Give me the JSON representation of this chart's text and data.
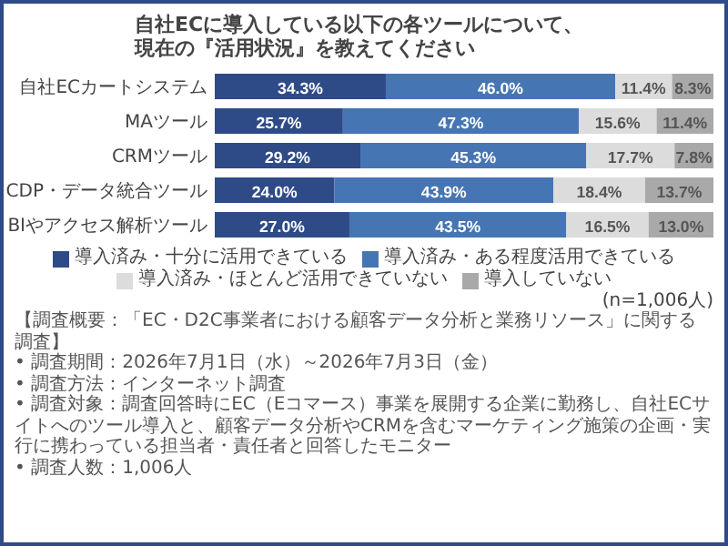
{
  "chart_data": {
    "type": "bar",
    "orientation": "horizontal",
    "stacked": true,
    "legend": "bottom",
    "title": "自社ECに導入している以下の各ツールについて、現在の『活用状況』を教えてください",
    "categories": [
      "自社ECカートシステム",
      "MAツール",
      "CRMツール",
      "CDP・データ統合ツール",
      "BIやアクセス解析ツール"
    ],
    "xlim": [
      0,
      100
    ],
    "series": [
      {
        "name": "導入済み・十分に活用できている",
        "color": "#2e4b87",
        "values": [
          34.3,
          25.7,
          29.2,
          24.0,
          27.0
        ],
        "value_labels": [
          "34.3%",
          "25.7%",
          "29.2%",
          "24.0%",
          "27.0%"
        ]
      },
      {
        "name": "導入済み・ある程度活用できている",
        "color": "#4675b3",
        "values": [
          46.0,
          47.3,
          45.3,
          43.9,
          43.5
        ],
        "value_labels": [
          "46.0%",
          "47.3%",
          "45.3%",
          "43.9%",
          "43.5%"
        ]
      },
      {
        "name": "導入済み・ほとんど活用できていない",
        "color": "#dcdcdc",
        "values": [
          11.4,
          15.6,
          17.7,
          18.4,
          16.5
        ],
        "value_labels": [
          "11.4%",
          "15.6%",
          "17.7%",
          "18.4%",
          "16.5%"
        ]
      },
      {
        "name": "導入していない",
        "color": "#a9a9a9",
        "values": [
          8.3,
          11.4,
          7.8,
          13.7,
          13.0
        ],
        "value_labels": [
          "8.3%",
          "11.4%",
          "7.8%",
          "13.7%",
          "13.0%"
        ]
      }
    ],
    "annotations": [
      "(n=1,006人)",
      "【調査概要：「EC・D2C事業者における顧客データ分析と業務リソース」に関する調査】",
      "• 調査期間：2026年7月1日（水）～2026年7月3日（金）",
      "• 調査方法：インターネット調査",
      "• 調査対象：調査回答時にEC（Eコマース）事業を展開する企業に勤務し、自社ECサイトへのツール導入と、顧客データ分析やCRMを含むマーケティング施策の企画・実行に携わっている担当者・責任者と回答したモニター",
      "• 調査人数：1,006人"
    ]
  }
}
